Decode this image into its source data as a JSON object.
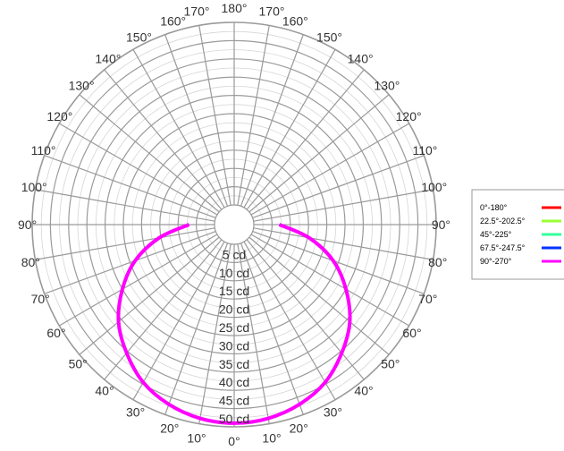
{
  "chart_data": {
    "type": "polar",
    "title": "",
    "unit": "cd",
    "r_max": 50,
    "ring_labels": [
      "5 cd",
      "10 cd",
      "15 cd",
      "20 cd",
      "25 cd",
      "30 cd",
      "35 cd",
      "40 cd",
      "45 cd",
      "50 cd"
    ],
    "angle_labels_left": [
      "0°",
      "10°",
      "20°",
      "30°",
      "40°",
      "50°",
      "60°",
      "70°",
      "80°",
      "90°",
      "100°",
      "110°",
      "120°",
      "130°",
      "140°",
      "150°",
      "160°",
      "170°",
      "180°"
    ],
    "angle_labels_right": [
      "10°",
      "20°",
      "30°",
      "40°",
      "50°",
      "60°",
      "70°",
      "80°",
      "90°",
      "100°",
      "110°",
      "120°",
      "130°",
      "140°",
      "150°",
      "160°",
      "170°"
    ],
    "grid": true,
    "legend_position": "right",
    "series": [
      {
        "name": "0°-180°",
        "color": "#ff0000",
        "angles": [
          0,
          10,
          20,
          30,
          40,
          50,
          60,
          70,
          80,
          90
        ],
        "values": [
          49,
          48.5,
          47,
          44.5,
          40.5,
          36,
          30,
          23.5,
          15.5,
          7
        ]
      },
      {
        "name": "22.5°-202.5°",
        "color": "#99ff33",
        "angles": [
          0,
          10,
          20,
          30,
          40,
          50,
          60,
          70,
          80,
          90
        ],
        "values": [
          49,
          48.5,
          47,
          44.5,
          40.5,
          36,
          30,
          23.5,
          15.5,
          7
        ]
      },
      {
        "name": "45°-225°",
        "color": "#33ff99",
        "angles": [
          0,
          10,
          20,
          30,
          40,
          50,
          60,
          70,
          80,
          90
        ],
        "values": [
          49,
          48.5,
          47,
          44.5,
          40.5,
          36,
          30,
          23.5,
          15.5,
          7
        ]
      },
      {
        "name": "67.5°-247.5°",
        "color": "#0033ff",
        "angles": [
          0,
          10,
          20,
          30,
          40,
          50,
          60,
          70,
          80,
          90
        ],
        "values": [
          49,
          48.5,
          47,
          44.5,
          40.5,
          36,
          30,
          23.5,
          15.5,
          7
        ]
      },
      {
        "name": "90°-270°",
        "color": "#ff00ff",
        "angles": [
          0,
          10,
          20,
          30,
          40,
          50,
          60,
          70,
          80,
          90
        ],
        "values": [
          49,
          48.5,
          47,
          44.5,
          40.5,
          36,
          30,
          23.5,
          15.5,
          7
        ]
      }
    ]
  }
}
